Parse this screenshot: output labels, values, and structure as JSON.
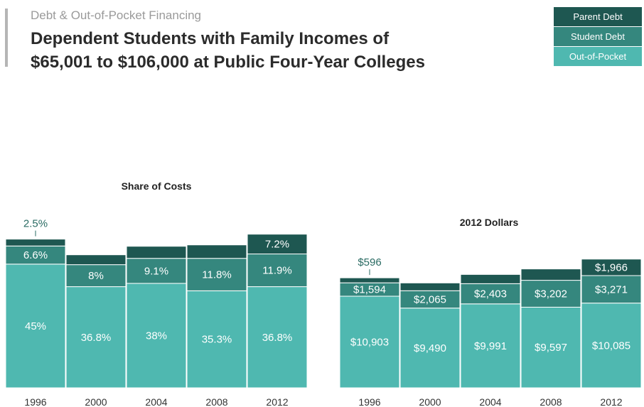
{
  "header": {
    "kicker": "Debt & Out-of-Pocket Financing",
    "title_line1": "Dependent Students with Family Incomes of",
    "title_line2": "$65,001 to $106,000 at Public Four-Year Colleges"
  },
  "legend": [
    {
      "label": "Parent Debt",
      "color": "#1e5751"
    },
    {
      "label": "Student Debt",
      "color": "#35877e"
    },
    {
      "label": "Out-of-Pocket",
      "color": "#4fb8b0"
    }
  ],
  "chart_data": [
    {
      "type": "bar",
      "stacked": true,
      "title": "Share of Costs",
      "categories": [
        "1996",
        "2000",
        "2004",
        "2008",
        "2012"
      ],
      "series": [
        {
          "name": "Out-of-Pocket",
          "values": [
            45,
            36.8,
            38,
            35.3,
            36.8
          ],
          "labels": [
            "45%",
            "36.8%",
            "38%",
            "35.3%",
            "36.8%"
          ]
        },
        {
          "name": "Student Debt",
          "values": [
            6.6,
            8,
            9.1,
            11.8,
            11.9
          ],
          "labels": [
            "6.6%",
            "8%",
            "9.1%",
            "11.8%",
            "11.9%"
          ]
        },
        {
          "name": "Parent Debt",
          "values": [
            2.5,
            3.6,
            4.4,
            4.9,
            7.2
          ],
          "labels": [
            "2.5%",
            null,
            null,
            null,
            "7.2%"
          ]
        }
      ]
    },
    {
      "type": "bar",
      "stacked": true,
      "title": "2012 Dollars",
      "categories": [
        "1996",
        "2000",
        "2004",
        "2008",
        "2012"
      ],
      "series": [
        {
          "name": "Out-of-Pocket",
          "values": [
            10903,
            9490,
            9991,
            9597,
            10085
          ],
          "labels": [
            "$10,903",
            "$9,490",
            "$9,991",
            "$9,597",
            "$10,085"
          ]
        },
        {
          "name": "Student Debt",
          "values": [
            1594,
            2065,
            2403,
            3202,
            3271
          ],
          "labels": [
            "$1,594",
            "$2,065",
            "$2,403",
            "$3,202",
            "$3,271"
          ]
        },
        {
          "name": "Parent Debt",
          "values": [
            596,
            930,
            1100,
            1350,
            1966
          ],
          "labels": [
            "$596",
            null,
            null,
            null,
            "$1,966"
          ]
        }
      ]
    }
  ]
}
